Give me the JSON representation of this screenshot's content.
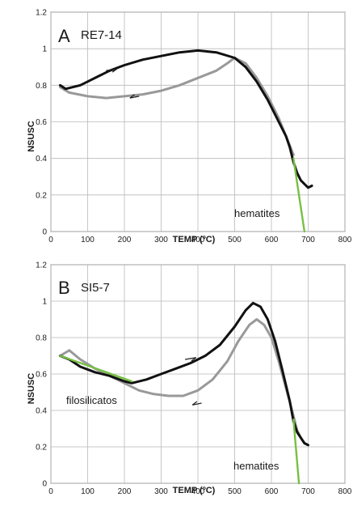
{
  "chart_data": [
    {
      "type": "line",
      "panel_label": "A",
      "sample": "RE7-14",
      "xlabel": "TEMP (ºC)",
      "ylabel": "NSUSC",
      "xlim": [
        0,
        800
      ],
      "ylim": [
        0,
        1.2
      ],
      "xticks": [
        "0",
        "100",
        "200",
        "300",
        "400",
        "500",
        "600",
        "700",
        "800"
      ],
      "yticks": [
        "0",
        "0.2",
        "0.4",
        "0.6",
        "0.8",
        "1",
        "1.2"
      ],
      "grid": true,
      "annotations": [
        "hematites"
      ],
      "series": [
        {
          "role": "heating",
          "color": "#111111",
          "x": [
            25,
            40,
            60,
            80,
            100,
            130,
            160,
            200,
            250,
            300,
            350,
            400,
            450,
            500,
            530,
            560,
            590,
            620,
            640,
            650,
            660,
            670,
            680,
            690,
            700,
            710
          ],
          "y": [
            0.8,
            0.78,
            0.79,
            0.8,
            0.82,
            0.85,
            0.88,
            0.91,
            0.94,
            0.96,
            0.98,
            0.99,
            0.98,
            0.95,
            0.9,
            0.82,
            0.72,
            0.6,
            0.52,
            0.46,
            0.38,
            0.32,
            0.28,
            0.26,
            0.24,
            0.25
          ]
        },
        {
          "role": "cooling",
          "color": "#999999",
          "x": [
            25,
            50,
            100,
            150,
            200,
            250,
            300,
            350,
            400,
            450,
            480,
            500,
            530,
            560,
            590,
            620,
            640,
            660
          ],
          "y": [
            0.79,
            0.76,
            0.74,
            0.73,
            0.74,
            0.75,
            0.77,
            0.8,
            0.84,
            0.88,
            0.92,
            0.95,
            0.92,
            0.84,
            0.74,
            0.62,
            0.52,
            0.42
          ]
        },
        {
          "role": "hematite-fit",
          "color": "#77c043",
          "x": [
            660,
            690
          ],
          "y": [
            0.4,
            0.0
          ]
        }
      ],
      "arrows": [
        {
          "x": [
            150,
            180
          ],
          "y": [
            0.88,
            0.89
          ]
        },
        {
          "x": [
            240,
            215
          ],
          "y": [
            0.74,
            0.73
          ]
        }
      ]
    },
    {
      "type": "line",
      "panel_label": "B",
      "sample": "SI5-7",
      "xlabel": "TEMP (ºC)",
      "ylabel": "NSUSC",
      "xlim": [
        0,
        800
      ],
      "ylim": [
        0,
        1.2
      ],
      "xticks": [
        "0",
        "100",
        "200",
        "300",
        "400",
        "500",
        "600",
        "700",
        "800"
      ],
      "yticks": [
        "0",
        "0.2",
        "0.4",
        "0.6",
        "0.8",
        "1",
        "1.2"
      ],
      "grid": true,
      "annotations": [
        "filosilicatos",
        "hematites"
      ],
      "series": [
        {
          "role": "heating",
          "color": "#111111",
          "x": [
            25,
            50,
            80,
            120,
            160,
            200,
            220,
            260,
            300,
            340,
            380,
            420,
            460,
            500,
            530,
            550,
            570,
            590,
            610,
            630,
            650,
            660,
            670,
            680,
            690,
            700
          ],
          "y": [
            0.7,
            0.68,
            0.64,
            0.61,
            0.59,
            0.56,
            0.55,
            0.57,
            0.6,
            0.63,
            0.66,
            0.7,
            0.76,
            0.86,
            0.95,
            0.99,
            0.97,
            0.9,
            0.78,
            0.62,
            0.45,
            0.34,
            0.28,
            0.25,
            0.22,
            0.21
          ]
        },
        {
          "role": "cooling",
          "color": "#999999",
          "x": [
            25,
            50,
            80,
            120,
            160,
            200,
            240,
            280,
            320,
            360,
            400,
            440,
            480,
            510,
            540,
            560,
            580,
            600,
            620,
            640,
            660,
            670,
            680,
            690,
            700
          ],
          "y": [
            0.7,
            0.73,
            0.68,
            0.63,
            0.59,
            0.55,
            0.51,
            0.49,
            0.48,
            0.48,
            0.51,
            0.57,
            0.67,
            0.78,
            0.87,
            0.9,
            0.87,
            0.8,
            0.67,
            0.52,
            0.37,
            0.29,
            0.25,
            0.22,
            0.21
          ]
        },
        {
          "role": "filosilicatos-fit",
          "color": "#77c043",
          "x": [
            25,
            220
          ],
          "y": [
            0.7,
            0.56
          ]
        },
        {
          "role": "hematite-fit",
          "color": "#77c043",
          "x": [
            660,
            675
          ],
          "y": [
            0.35,
            0.0
          ]
        }
      ],
      "arrows": [
        {
          "x": [
            365,
            395
          ],
          "y": [
            0.68,
            0.69
          ]
        },
        {
          "x": [
            410,
            385
          ],
          "y": [
            0.44,
            0.43
          ]
        }
      ]
    }
  ]
}
